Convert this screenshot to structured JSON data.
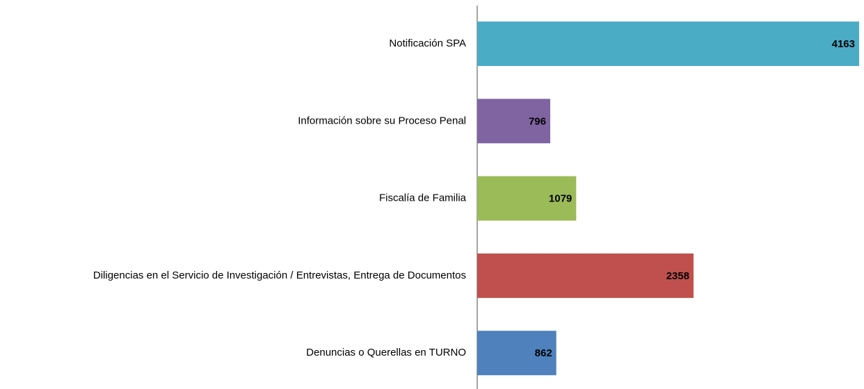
{
  "chart_data": {
    "type": "bar",
    "categories": [
      "Notificación SPA",
      "Información sobre su Proceso Penal",
      "Fiscalía de Familia",
      "Diligencias en el Servicio de Investigación / Entrevistas, Entrega de Documentos",
      "Denuncias o Querellas en TURNO"
    ],
    "values": [
      4163,
      796,
      1079,
      2358,
      862
    ],
    "colors": [
      "#4bacc6",
      "#8064a2",
      "#9bbb59",
      "#c0504d",
      "#4f81bd"
    ]
  }
}
